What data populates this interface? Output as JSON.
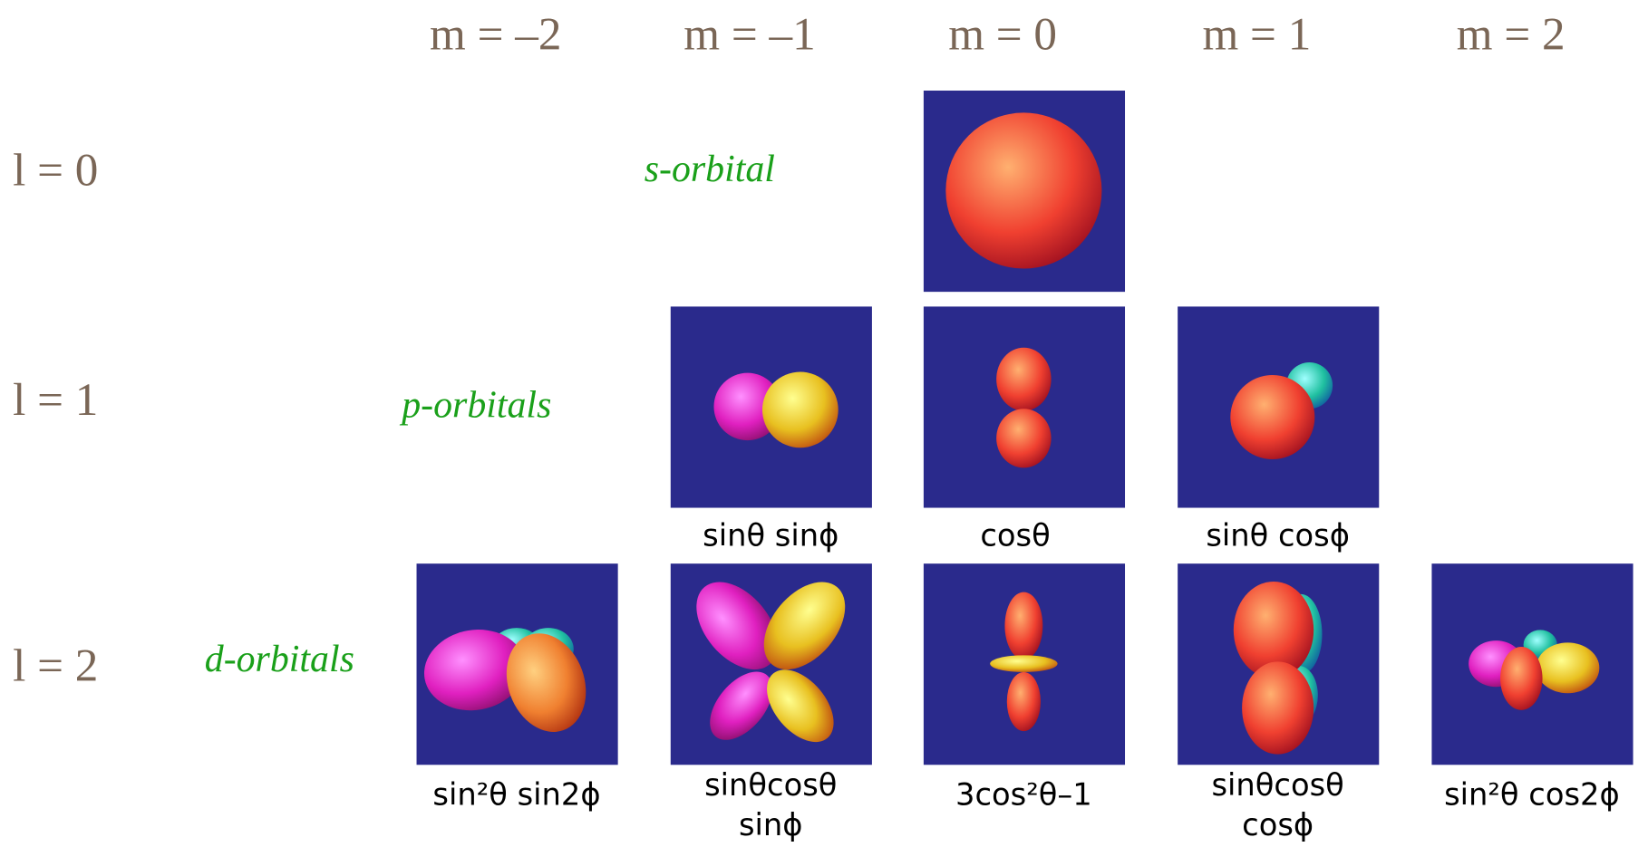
{
  "column_headers": [
    "m = –2",
    "m = –1",
    "m = 0",
    "m = 1",
    "m = 2"
  ],
  "rows": [
    {
      "label": "l = 0",
      "group": "s-orbital",
      "cells": [
        null,
        null,
        [],
        null,
        null
      ]
    },
    {
      "label": "l = 1",
      "group": "p-orbitals",
      "cells": [
        null,
        [
          "sinθ sinϕ"
        ],
        [
          "cosθ"
        ],
        [
          "sinθ cosϕ"
        ],
        null
      ]
    },
    {
      "label": "l = 2",
      "group": "d-orbitals",
      "cells": [
        [
          "sin²θ sin2ϕ"
        ],
        [
          "sinθcosθ",
          "sinϕ"
        ],
        [
          "3cos²θ–1"
        ],
        [
          "sinθcosθ",
          "cosϕ"
        ],
        [
          "sin²θ cos2ϕ"
        ]
      ]
    }
  ]
}
